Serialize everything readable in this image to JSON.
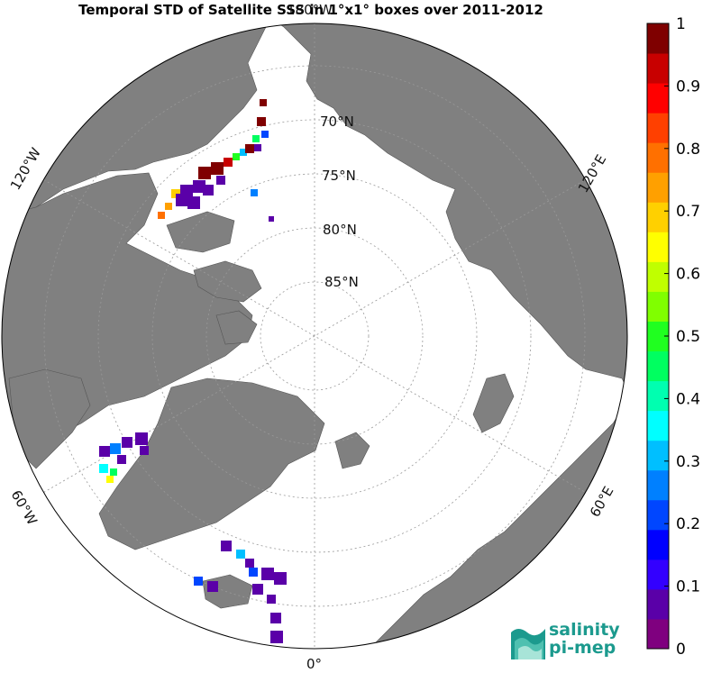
{
  "title": "Temporal STD of Satellite SSS in 1°x1° boxes over 2011-2012",
  "map": {
    "projection": "north polar stereographic",
    "lon_labels": [
      {
        "text": "180°W",
        "angle": 0
      },
      {
        "text": "120°E",
        "angle": 60
      },
      {
        "text": "60°E",
        "angle": 120
      },
      {
        "text": "0°",
        "angle": 180
      },
      {
        "text": "60°W",
        "angle": 240
      },
      {
        "text": "120°W",
        "angle": 300
      }
    ],
    "lat_labels": [
      "70°N",
      "75°N",
      "80°N",
      "85°N"
    ],
    "colors": {
      "land": "#808080",
      "ocean": "#ffffff",
      "border": "#000000",
      "grid": "#999999"
    }
  },
  "colorbar": {
    "min": 0,
    "max": 1,
    "tick_labels": [
      "0",
      "0.1",
      "0.2",
      "0.3",
      "0.4",
      "0.5",
      "0.6",
      "0.7",
      "0.8",
      "0.9",
      "1"
    ],
    "colors": [
      "#7f007f",
      "#5a00a8",
      "#3300ff",
      "#0000ff",
      "#0046ff",
      "#0080ff",
      "#00bfff",
      "#00ffff",
      "#00ffb0",
      "#00ff60",
      "#20ff20",
      "#80ff00",
      "#c0ff00",
      "#ffff00",
      "#ffd000",
      "#ffa000",
      "#ff7000",
      "#ff4000",
      "#ff0000",
      "#c80000",
      "#7f0000"
    ]
  },
  "logo": {
    "line1": "salinity",
    "line2": "pi-mep"
  }
}
